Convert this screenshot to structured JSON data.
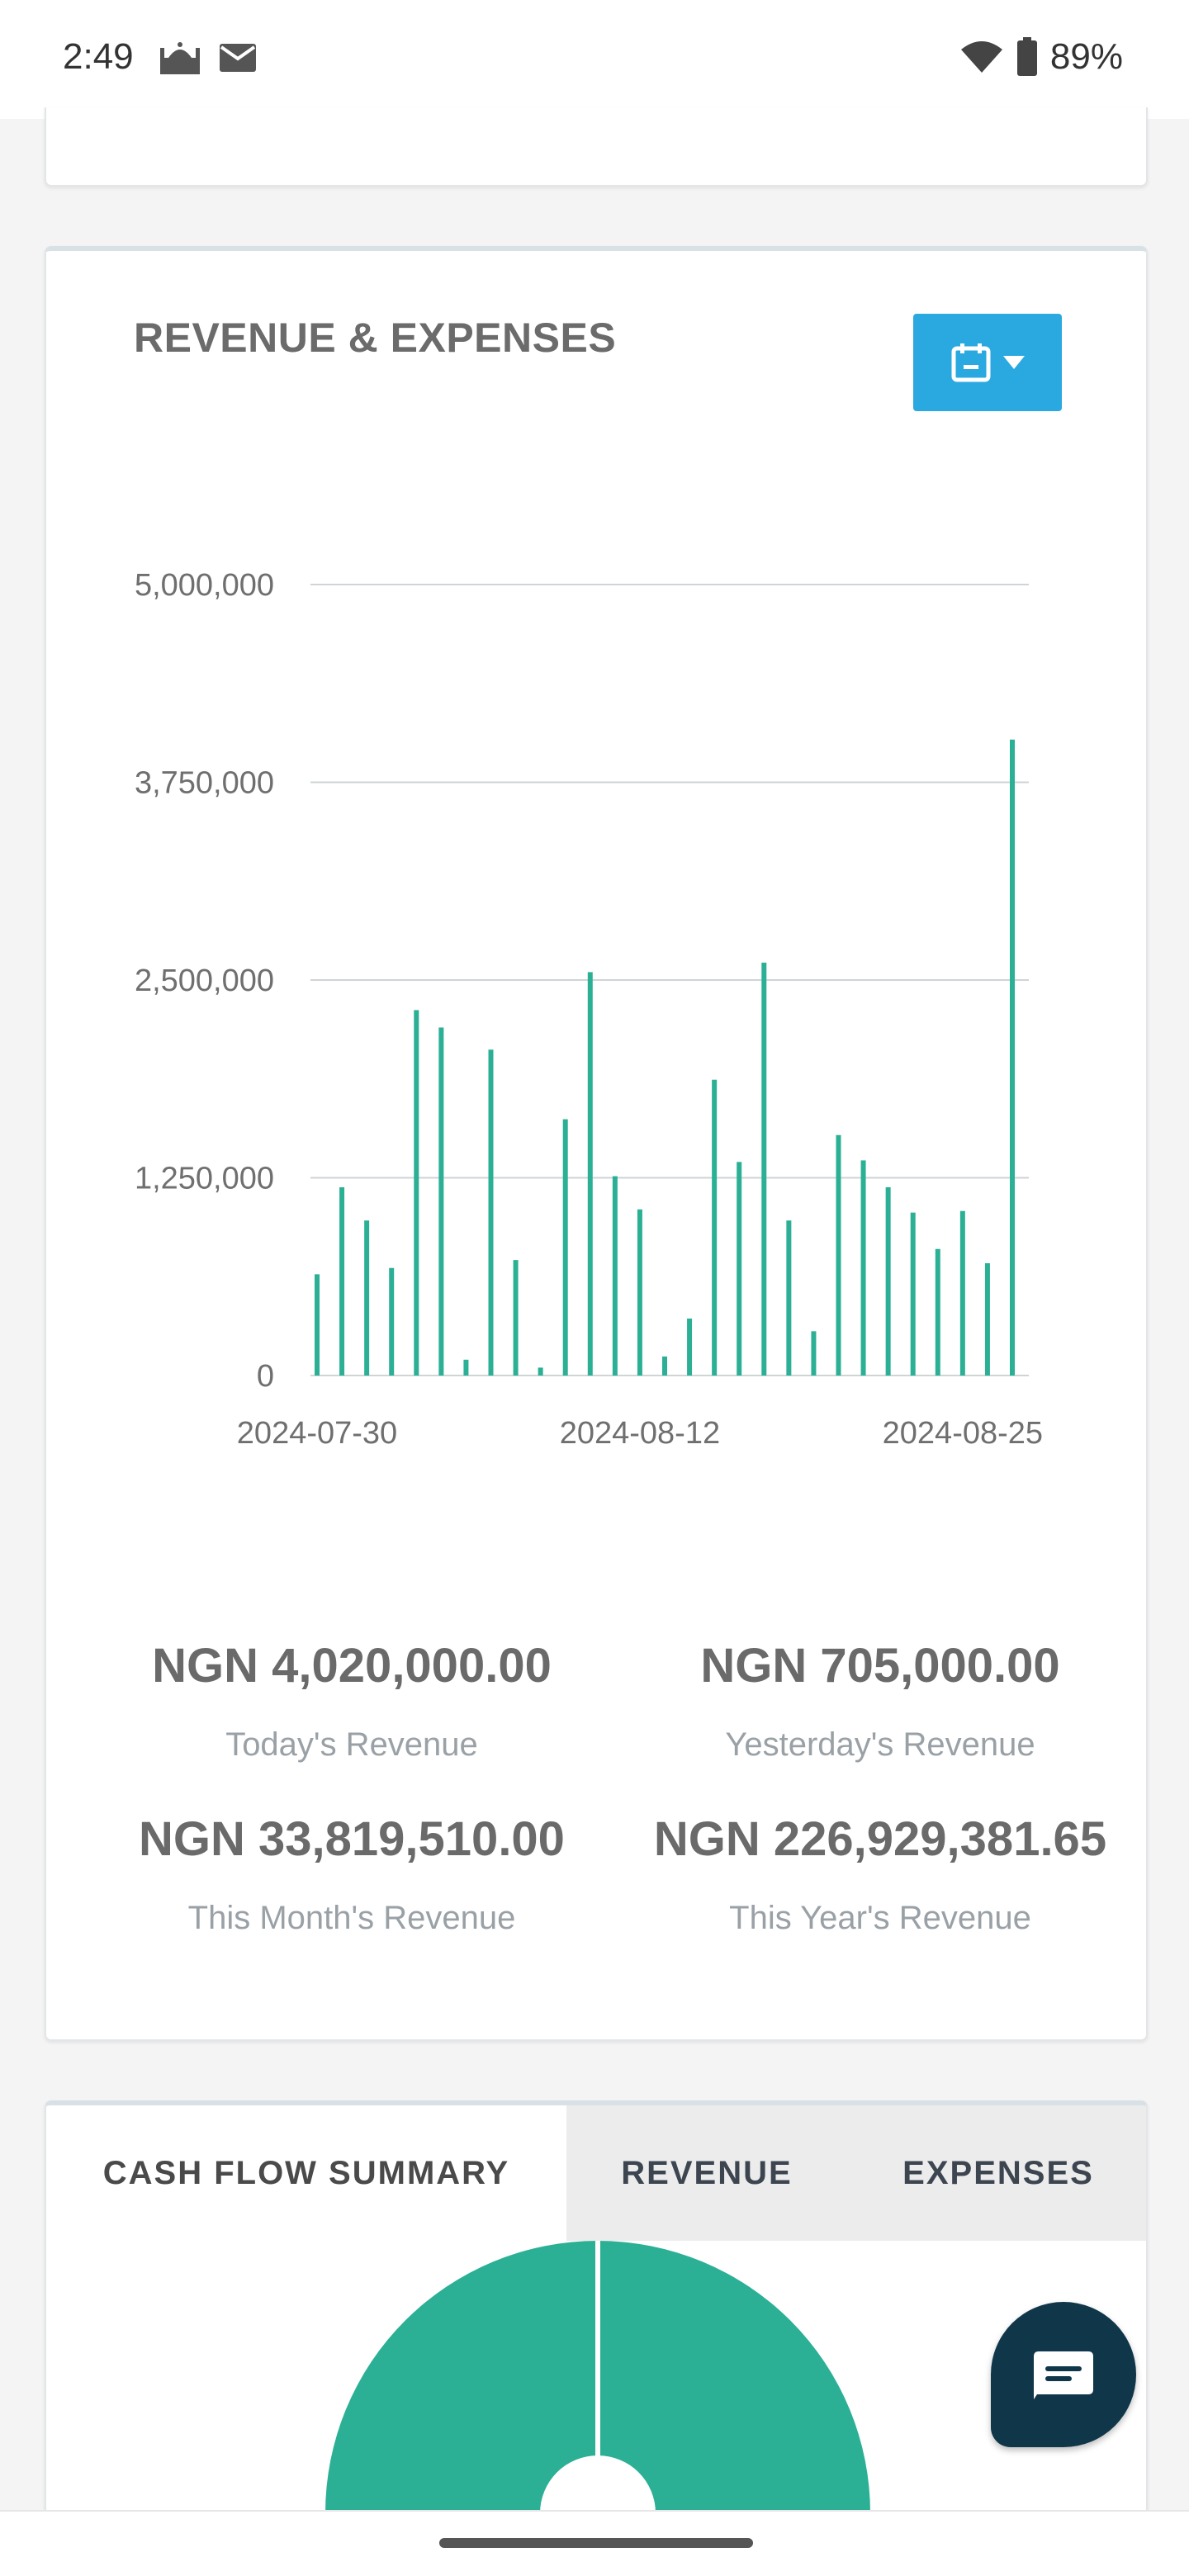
{
  "status_bar": {
    "time": "2:49",
    "battery": "89%",
    "icons": [
      "mosque-icon",
      "mail-icon",
      "wifi-icon",
      "battery-icon"
    ]
  },
  "revenue_card": {
    "title": "REVENUE & EXPENSES",
    "calendar_button_icon": "calendar-icon",
    "accent_color": "#2aa9e0",
    "bar_color": "#2bb095"
  },
  "chart_data": {
    "type": "bar",
    "categories": [
      "2024-07-30",
      "2024-07-31",
      "2024-08-01",
      "2024-08-02",
      "2024-08-03",
      "2024-08-04",
      "2024-08-05",
      "2024-08-06",
      "2024-08-07",
      "2024-08-08",
      "2024-08-09",
      "2024-08-10",
      "2024-08-11",
      "2024-08-12",
      "2024-08-13",
      "2024-08-14",
      "2024-08-15",
      "2024-08-16",
      "2024-08-17",
      "2024-08-18",
      "2024-08-19",
      "2024-08-20",
      "2024-08-21",
      "2024-08-22",
      "2024-08-23",
      "2024-08-24",
      "2024-08-25",
      "2024-08-26",
      "2024-08-27"
    ],
    "values": [
      640000,
      1190000,
      980000,
      680000,
      2310000,
      2200000,
      100000,
      2060000,
      730000,
      50000,
      1620000,
      2550000,
      1260000,
      1050000,
      120000,
      360000,
      1870000,
      1350000,
      2610000,
      980000,
      280000,
      1520000,
      1360000,
      1190000,
      1030000,
      800000,
      1040000,
      710000,
      4020000
    ],
    "y_ticks": [
      "0",
      "1,250,000",
      "2,500,000",
      "3,750,000",
      "5,000,000"
    ],
    "x_tick_labels": [
      "2024-07-30",
      "2024-08-12",
      "2024-08-25"
    ],
    "ylim": [
      0,
      5000000
    ],
    "grid": true
  },
  "stats": {
    "today": {
      "value": "NGN 4,020,000.00",
      "label": "Today's Revenue"
    },
    "yesterday": {
      "value": "NGN 705,000.00",
      "label": "Yesterday's Revenue"
    },
    "month": {
      "value": "NGN 33,819,510.00",
      "label": "This Month's Revenue"
    },
    "year": {
      "value": "NGN 226,929,381.65",
      "label": "This Year's Revenue"
    }
  },
  "cash_card": {
    "tabs": [
      "CASH FLOW SUMMARY",
      "REVENUE",
      "EXPENSES"
    ],
    "active_tab": 0,
    "donut_color": "#2bb095"
  },
  "chat_button_icon": "chat-icon"
}
